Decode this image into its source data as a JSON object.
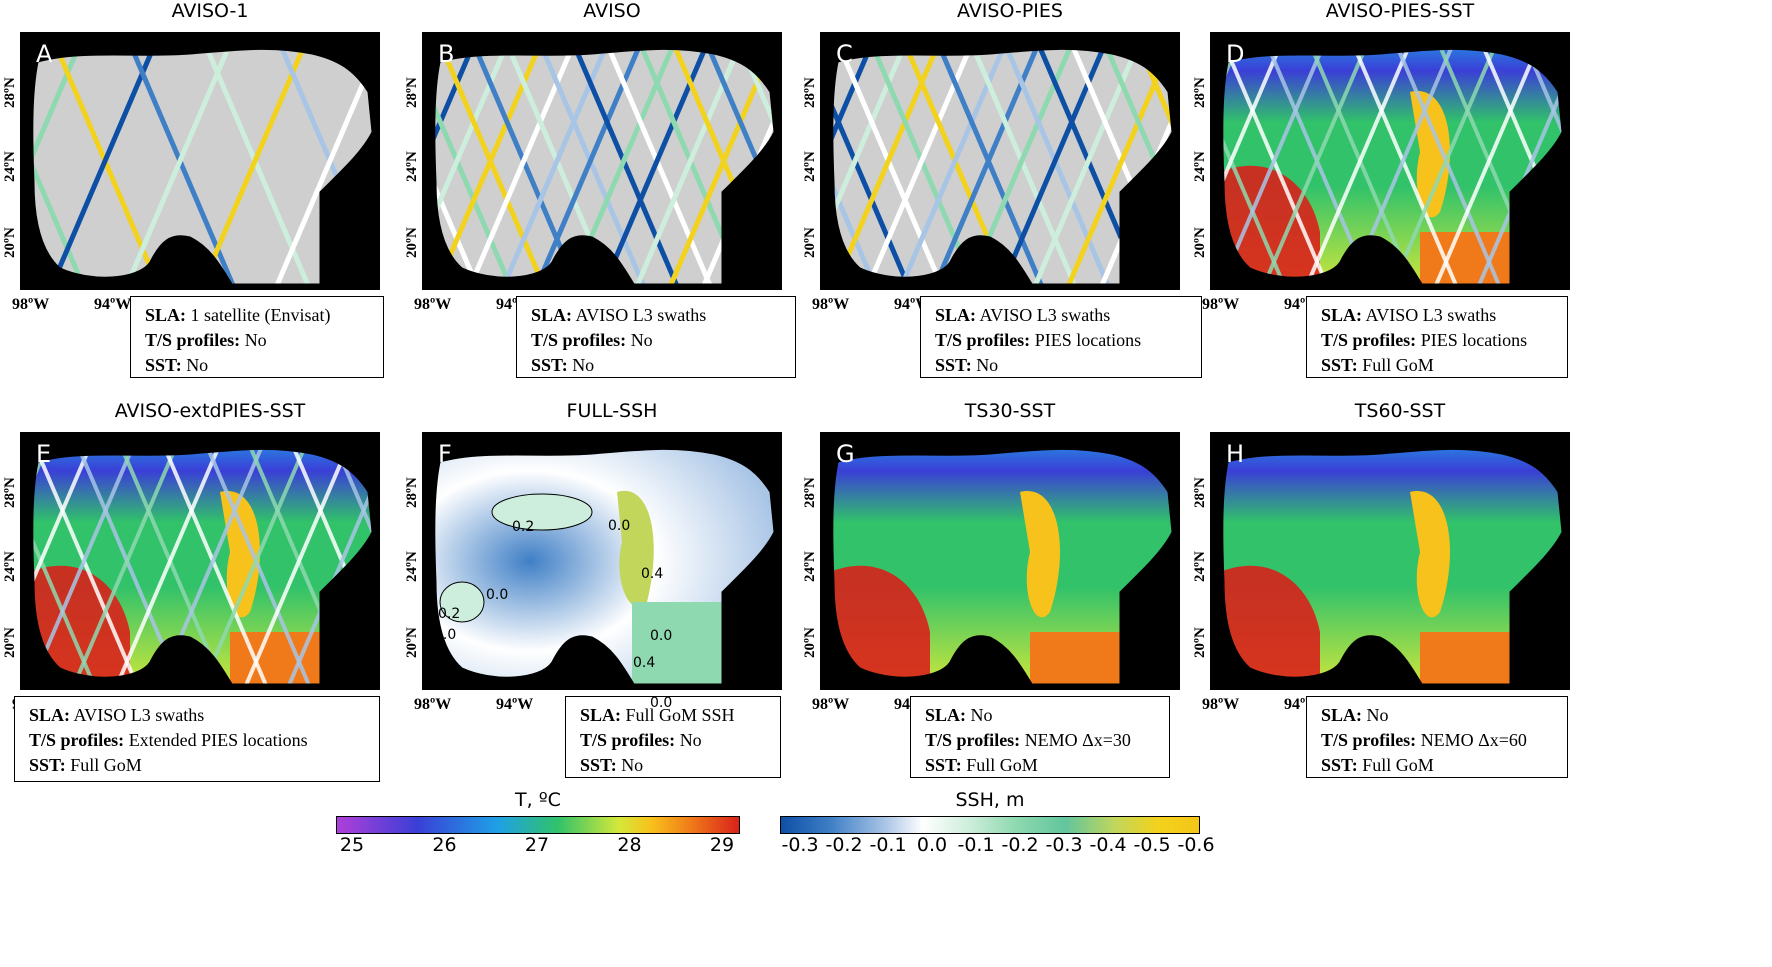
{
  "panels": [
    {
      "title": "AVISO-1",
      "letter": "A",
      "sla": "1 satellite (Envisat)",
      "ts": "No",
      "sst": "No",
      "ptype": "sla"
    },
    {
      "title": "AVISO",
      "letter": "B",
      "sla": "AVISO L3 swaths",
      "ts": "No",
      "sst": "No",
      "ptype": "sla"
    },
    {
      "title": "AVISO-PIES",
      "letter": "C",
      "sla": "AVISO L3 swaths",
      "ts": "PIES locations",
      "sst": "No",
      "ptype": "sla"
    },
    {
      "title": "AVISO-PIES-SST",
      "letter": "D",
      "sla": "AVISO L3 swaths",
      "ts": "PIES locations",
      "sst": "Full GoM",
      "ptype": "sst"
    },
    {
      "title": "AVISO-extdPIES-SST",
      "letter": "E",
      "sla": "AVISO L3 swaths",
      "ts": "Extended PIES locations",
      "sst": "Full GoM",
      "ptype": "sst"
    },
    {
      "title": "FULL-SSH",
      "letter": "F",
      "sla": "Full GoM SSH",
      "ts": "No",
      "sst": "No",
      "ptype": "ssh"
    },
    {
      "title": "TS30-SST",
      "letter": "G",
      "sla": "No",
      "ts": "NEMO Δx=30",
      "sst": "Full GoM",
      "ptype": "sst"
    },
    {
      "title": "TS60-SST",
      "letter": "H",
      "sla": "No",
      "ts": "NEMO Δx=60",
      "sst": "Full GoM",
      "ptype": "sst"
    }
  ],
  "labels": {
    "sla": "SLA:",
    "ts": "T/S profiles:",
    "sst": "SST:"
  },
  "axes": {
    "lat_ticks": [
      "28ºN",
      "24ºN",
      "20ºN"
    ],
    "lon_ticks": [
      "98ºW",
      "94ºW"
    ]
  },
  "contour_labels": [
    "0.2",
    "0.0",
    "0.2",
    "0.0",
    "0.0",
    "0.4",
    "0.0",
    "0.4",
    "0.0"
  ],
  "colorbars": {
    "temperature": {
      "title": "T, ºC",
      "ticks": [
        "25",
        "26",
        "27",
        "28",
        "29"
      ],
      "colors": [
        "#b03fd9",
        "#3a3fd6",
        "#1fa0e6",
        "#31c26a",
        "#d4e83a",
        "#f7c21b",
        "#f07a1a",
        "#d8211b"
      ]
    },
    "ssh": {
      "title": "SSH, m",
      "ticks": [
        "-0.3",
        "-0.2",
        "-0.1",
        "0.0",
        "-0.1",
        "-0.2",
        "-0.3",
        "-0.4",
        "-0.5",
        "-0.6"
      ],
      "colors": [
        "#0e4fa6",
        "#3f7fc6",
        "#a9c5e6",
        "#ffffff",
        "#cdeedc",
        "#8fd9b0",
        "#62c59d",
        "#c2d65b",
        "#f2d21c",
        "#f5c518"
      ]
    }
  },
  "colors": {
    "land": "#000000",
    "ocean_masked": "#cfcfcf",
    "box_border": "#000000"
  }
}
